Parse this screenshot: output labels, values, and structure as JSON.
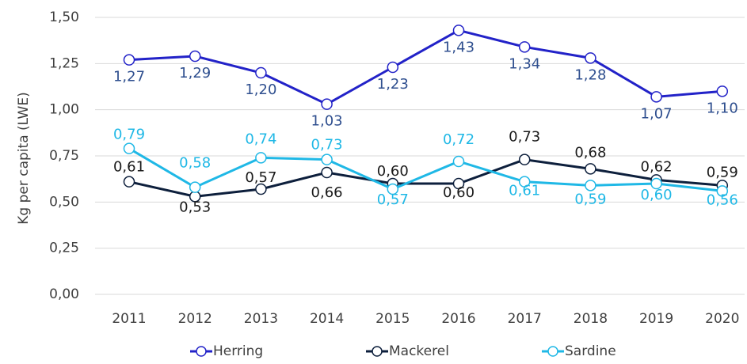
{
  "chart_data": {
    "type": "line",
    "y_label": "Kg per capita (LWE)",
    "categories": [
      "2011",
      "2012",
      "2013",
      "2014",
      "2015",
      "2016",
      "2017",
      "2018",
      "2019",
      "2020"
    ],
    "ylim": [
      0,
      1.5
    ],
    "yticks": [
      {
        "value": 0,
        "label": "0,00"
      },
      {
        "value": 0.25,
        "label": "0,25"
      },
      {
        "value": 0.5,
        "label": "0,50"
      },
      {
        "value": 0.75,
        "label": "0,75"
      },
      {
        "value": 1,
        "label": "1,00"
      },
      {
        "value": 1.25,
        "label": "1,25"
      },
      {
        "value": 1.5,
        "label": "1,50"
      }
    ],
    "grid": true,
    "legend": "bottom",
    "series": [
      {
        "name": "Herring",
        "color": "#2222c8",
        "label_color": "#2f4f8f",
        "values": [
          1.27,
          1.29,
          1.2,
          1.03,
          1.23,
          1.43,
          1.34,
          1.28,
          1.07,
          1.1
        ],
        "value_labels": [
          "1,27",
          "1,29",
          "1,20",
          "1,03",
          "1,23",
          "1,43",
          "1,34",
          "1,28",
          "1,07",
          "1,10"
        ]
      },
      {
        "name": "Mackerel",
        "color": "#0d1f3c",
        "label_color": "#1a1a1a",
        "values": [
          0.61,
          0.53,
          0.57,
          0.66,
          0.6,
          0.6,
          0.73,
          0.68,
          0.62,
          0.59
        ],
        "value_labels": [
          "0,61",
          "0,53",
          "0,57",
          "0,66",
          "0,60",
          "0,60",
          "0,73",
          "0,68",
          "0,62",
          "0,59"
        ]
      },
      {
        "name": "Sardine",
        "color": "#1fb8e6",
        "label_color": "#1fb8e6",
        "values": [
          0.79,
          0.58,
          0.74,
          0.73,
          0.57,
          0.72,
          0.61,
          0.59,
          0.6,
          0.56
        ],
        "value_labels": [
          "0,79",
          "0,58",
          "0,74",
          "0,73",
          "0,57",
          "0,72",
          "0,61",
          "0,59",
          "0,60",
          "0,56"
        ]
      }
    ]
  }
}
